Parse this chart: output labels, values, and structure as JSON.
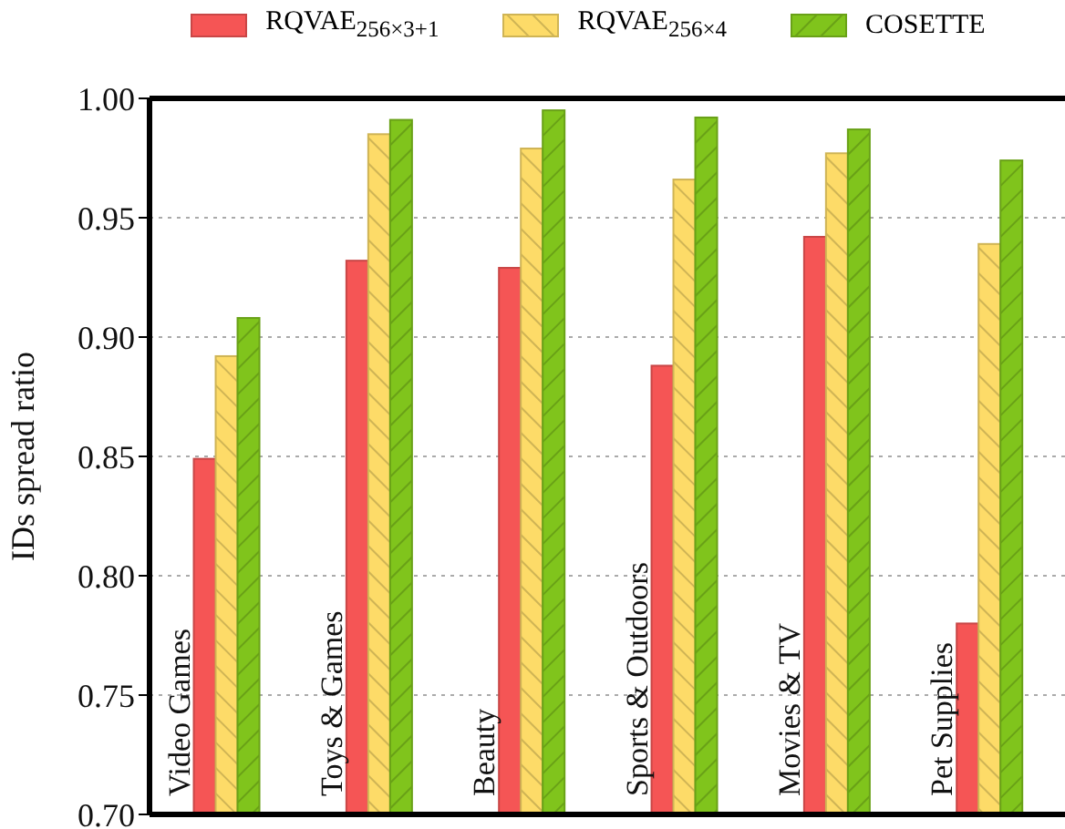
{
  "chart_data": {
    "type": "bar",
    "ylabel": "IDs spread ratio",
    "categories": [
      "Video Games",
      "Toys & Games",
      "Beauty",
      "Sports & Outdoors",
      "Movies & TV",
      "Pet Supplies"
    ],
    "series": [
      {
        "name": "RQVAE$_{256×3+1}$",
        "color": "#f55555",
        "values": [
          0.849,
          0.932,
          0.929,
          0.888,
          0.942,
          0.78
        ]
      },
      {
        "name": "RQVAE$_{256×4}$",
        "color": "#fddb68",
        "values": [
          0.892,
          0.985,
          0.979,
          0.966,
          0.977,
          0.939
        ]
      },
      {
        "name": "COSETTE",
        "color": "#80c41c",
        "values": [
          0.908,
          0.991,
          0.995,
          0.992,
          0.987,
          0.974
        ]
      }
    ],
    "ylim": [
      0.7,
      1.0
    ],
    "yticks": [
      {
        "value": 0.7,
        "label": "0.70"
      },
      0.75,
      {
        "value": 0.8,
        "label": "0.80"
      },
      0.85,
      {
        "value": 0.9,
        "label": "0.90"
      },
      0.95,
      {
        "value": 1.0,
        "label": "1.00"
      }
    ],
    "grid": "y",
    "legend": "top"
  }
}
